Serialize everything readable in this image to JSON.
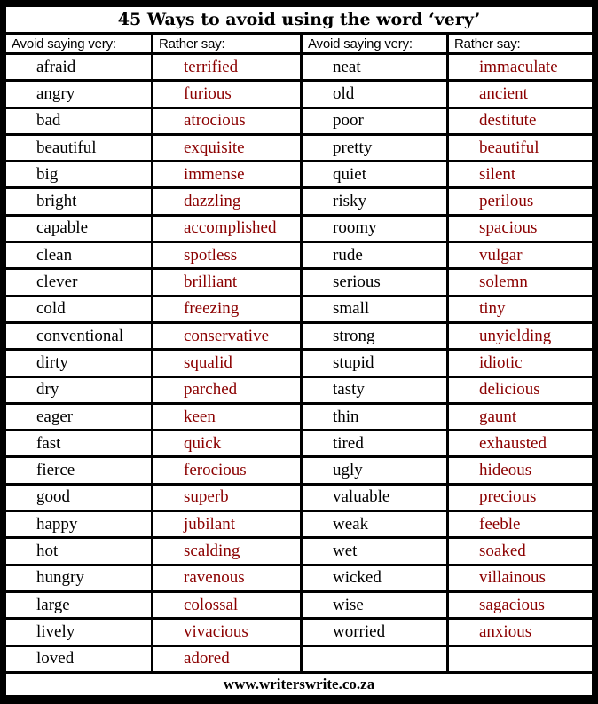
{
  "title": "45 Ways to avoid using the word ‘very’",
  "headers": [
    "Avoid saying very:",
    "Rather say:",
    "Avoid saying very:",
    "Rather say:"
  ],
  "left": [
    [
      "afraid",
      "terrified"
    ],
    [
      "angry",
      "furious"
    ],
    [
      "bad",
      "atrocious"
    ],
    [
      "beautiful",
      "exquisite"
    ],
    [
      "big",
      "immense"
    ],
    [
      "bright",
      "dazzling"
    ],
    [
      "capable",
      "accomplished"
    ],
    [
      "clean",
      "spotless"
    ],
    [
      "clever",
      "brilliant"
    ],
    [
      "cold",
      "freezing"
    ],
    [
      "conventional",
      "conservative"
    ],
    [
      "dirty",
      "squalid"
    ],
    [
      "dry",
      "parched"
    ],
    [
      "eager",
      "keen"
    ],
    [
      "fast",
      "quick"
    ],
    [
      "fierce",
      "ferocious"
    ],
    [
      "good",
      "superb"
    ],
    [
      "happy",
      "jubilant"
    ],
    [
      "hot",
      "scalding"
    ],
    [
      "hungry",
      "ravenous"
    ],
    [
      "large",
      "colossal"
    ],
    [
      "lively",
      "vivacious"
    ],
    [
      "loved",
      "adored"
    ]
  ],
  "right": [
    [
      "neat",
      "immaculate"
    ],
    [
      "old",
      "ancient"
    ],
    [
      "poor",
      "destitute"
    ],
    [
      "pretty",
      "beautiful"
    ],
    [
      "quiet",
      "silent"
    ],
    [
      "risky",
      "perilous"
    ],
    [
      "roomy",
      "spacious"
    ],
    [
      "rude",
      "vulgar"
    ],
    [
      "serious",
      "solemn"
    ],
    [
      "small",
      "tiny"
    ],
    [
      "strong",
      "unyielding"
    ],
    [
      "stupid",
      "idiotic"
    ],
    [
      "tasty",
      "delicious"
    ],
    [
      "thin",
      "gaunt"
    ],
    [
      "tired",
      "exhausted"
    ],
    [
      "ugly",
      "hideous"
    ],
    [
      "valuable",
      "precious"
    ],
    [
      "weak",
      "feeble"
    ],
    [
      "wet",
      "soaked"
    ],
    [
      "wicked",
      "villainous"
    ],
    [
      "wise",
      "sagacious"
    ],
    [
      "worried",
      "anxious"
    ],
    [
      "",
      ""
    ]
  ],
  "footer": "www.writerswrite.co.za",
  "colors": {
    "replacement": "#8b0000",
    "border": "#000000"
  }
}
